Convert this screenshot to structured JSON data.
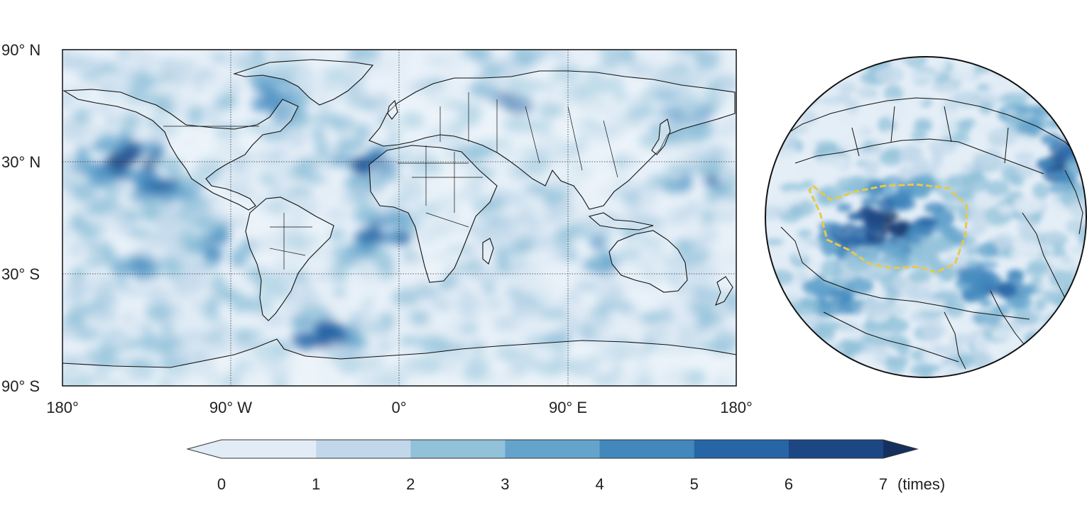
{
  "map": {
    "lat_labels": [
      "90° N",
      "30° N",
      "30° S",
      "90° S"
    ],
    "lon_labels": [
      "180°",
      "90° W",
      "0°",
      "90° E",
      "180°"
    ]
  },
  "colorbar": {
    "ticks": [
      "0",
      "1",
      "2",
      "3",
      "4",
      "5",
      "6",
      "7"
    ],
    "unit": "(times)",
    "colors": [
      "#e2ecf6",
      "#c2d8ea",
      "#92c1da",
      "#64a4cc",
      "#4288bd",
      "#2766a6",
      "#1c4784",
      "#15305f"
    ]
  },
  "colors": {
    "ocean_base": "#e9f1f9",
    "boundary_line": "#111111",
    "plateau_outline": "#e8c84a"
  }
}
